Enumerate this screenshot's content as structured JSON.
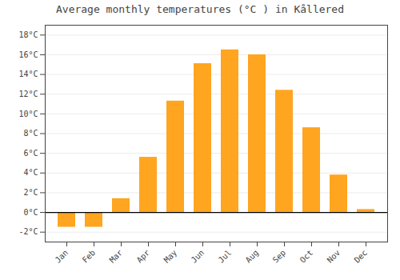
{
  "chart_data": {
    "type": "bar",
    "title": "Average monthly temperatures (°C ) in Kållered",
    "categories": [
      "Jan",
      "Feb",
      "Mar",
      "Apr",
      "May",
      "Jun",
      "Jul",
      "Aug",
      "Sep",
      "Oct",
      "Nov",
      "Dec"
    ],
    "values": [
      -1.5,
      -1.5,
      1.4,
      5.6,
      11.3,
      15.1,
      16.5,
      16.0,
      12.4,
      8.6,
      3.8,
      0.3
    ],
    "color": "#FFA520",
    "ylim": [
      -3,
      19
    ],
    "yticks": [
      {
        "value": -2,
        "label": "-2°C"
      },
      {
        "value": 0,
        "label": "0°C"
      },
      {
        "value": 2,
        "label": "2°C"
      },
      {
        "value": 4,
        "label": "4°C"
      },
      {
        "value": 6,
        "label": "6°C"
      },
      {
        "value": 8,
        "label": "8°C"
      },
      {
        "value": 10,
        "label": "10°C"
      },
      {
        "value": 12,
        "label": "12°C"
      },
      {
        "value": 14,
        "label": "14°C"
      },
      {
        "value": 16,
        "label": "16°C"
      },
      {
        "value": 18,
        "label": "18°C"
      }
    ],
    "grid": true
  }
}
